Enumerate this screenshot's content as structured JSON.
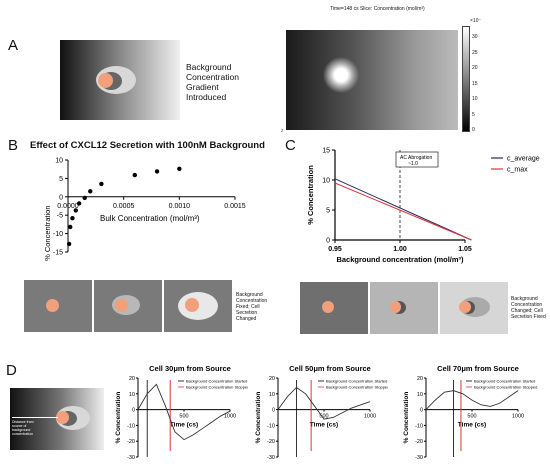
{
  "panel_a": {
    "letter": "A",
    "caption_lines": [
      "Background",
      "Concentration",
      "Gradient",
      "Introduced"
    ],
    "sim_header": "Time=148 cs   Slice: Concentration (mol/m³)",
    "colorbar_exp": "×10⁻",
    "colorbar_ticks": [
      "30",
      "25",
      "20",
      "15",
      "10",
      "5",
      "0"
    ]
  },
  "panel_b": {
    "letter": "B",
    "title": "Effect of CXCL12 Secretion with 100nM Background",
    "xlabel": "Bulk Concentration (mol/m³)",
    "ylabel": "% Concentration",
    "side_caption": [
      "Background",
      "Concentration",
      "Fixed; Cell",
      "Secretion",
      "Changed"
    ]
  },
  "panel_c": {
    "letter": "C",
    "xlabel": "Background concentration (mol/m³)",
    "ylabel": "% Concentration",
    "annotation": [
      "AC Abrogation",
      "~1.0"
    ],
    "side_caption": [
      "Background",
      "Concentration",
      "Changed; Cell",
      "Secretion Fixed"
    ]
  },
  "panel_d": {
    "letter": "D",
    "inset_label": [
      "Distance from",
      "source of",
      "background",
      "concentration"
    ],
    "legend_started": "Background Concentration Started",
    "legend_stopped": "Background Concentration Stopped",
    "ylabel": "% Concentration",
    "xlabel": "Time (cs)",
    "titles": [
      "Cell 30μm from Source",
      "Cell 50μm from Source",
      "Cell 70μm from Source"
    ]
  },
  "colors": {
    "red": "#e0333a",
    "navy": "#2a2a5c",
    "peach": "#f2a07b",
    "grey_bg": "#7d7d7d"
  },
  "chart_data": [
    {
      "type": "scatter",
      "title": "Effect of CXCL12 Secretion with 100nM Background",
      "xlabel": "Bulk Concentration (mol/m³)",
      "ylabel": "% Concentration",
      "xlim": [
        0,
        0.0015
      ],
      "ylim": [
        -15,
        10
      ],
      "xticks": [
        "0.0000",
        "0.0005",
        "0.0010",
        "0.0015"
      ],
      "yticks": [
        "10",
        "5",
        "0",
        "-5",
        "-10",
        "-15"
      ],
      "x": [
        1e-05,
        2e-05,
        4e-05,
        7e-05,
        0.0001,
        0.00015,
        0.0002,
        0.0003,
        0.0006,
        0.0008,
        0.001
      ],
      "y": [
        -12.8,
        -8.2,
        -5.8,
        -3.7,
        -1.8,
        -0.3,
        1.5,
        3.5,
        5.9,
        6.9,
        7.6
      ]
    },
    {
      "type": "line",
      "xlabel": "Background concentration (mol/m³)",
      "ylabel": "% Concentration",
      "xlim": [
        0.95,
        1.05
      ],
      "ylim": [
        0,
        15
      ],
      "xticks": [
        "0.95",
        "1.00",
        "1.05"
      ],
      "yticks": [
        "15",
        "10",
        "5",
        "0"
      ],
      "series": [
        {
          "name": "c_average",
          "color": "#2a2a5c",
          "x": [
            0.95,
            1.055
          ],
          "y": [
            10.2,
            0
          ]
        },
        {
          "name": "c_max",
          "color": "#e0333a",
          "x": [
            0.95,
            1.055
          ],
          "y": [
            9.5,
            0
          ]
        }
      ],
      "vline": 1.0
    },
    {
      "type": "line",
      "title": "Cell 30μm from Source",
      "xlabel": "Time (cs)",
      "ylabel": "% Concentration",
      "xlim": [
        0,
        1000
      ],
      "ylim": [
        -30,
        20
      ],
      "xticks": [
        "500",
        "1000"
      ],
      "yticks": [
        "20",
        "10",
        "0",
        "-10",
        "-20",
        "-30"
      ],
      "series": [
        {
          "name": "",
          "x": [
            0,
            100,
            200,
            300,
            400,
            500,
            600,
            700,
            800,
            900,
            1000
          ],
          "y": [
            0,
            10,
            16,
            2,
            -14,
            -19,
            -16,
            -12,
            -8,
            -4,
            -1
          ]
        }
      ],
      "vlines": [
        100,
        350
      ]
    },
    {
      "type": "line",
      "title": "Cell 50μm from Source",
      "xlabel": "Time (cs)",
      "ylabel": "% Concentration",
      "xlim": [
        0,
        1000
      ],
      "ylim": [
        -30,
        20
      ],
      "xticks": [
        "500",
        "1000"
      ],
      "yticks": [
        "20",
        "10",
        "0",
        "-10",
        "-20",
        "-30"
      ],
      "series": [
        {
          "name": "",
          "x": [
            0,
            100,
            200,
            300,
            400,
            500,
            600,
            700,
            800,
            900,
            1000
          ],
          "y": [
            0,
            8,
            14,
            10,
            2,
            -6,
            -5,
            -2,
            1,
            3,
            5
          ]
        }
      ],
      "vlines": [
        200,
        360
      ]
    },
    {
      "type": "line",
      "title": "Cell 70μm from Source",
      "xlabel": "Time (cs)",
      "ylabel": "% Concentration",
      "xlim": [
        0,
        1000
      ],
      "ylim": [
        -30,
        20
      ],
      "xticks": [
        "500",
        "1000"
      ],
      "yticks": [
        "20",
        "10",
        "0",
        "-10",
        "-20",
        "-30"
      ],
      "series": [
        {
          "name": "",
          "x": [
            0,
            100,
            200,
            300,
            400,
            500,
            600,
            700,
            800,
            900,
            1000
          ],
          "y": [
            0,
            6,
            11,
            12,
            10,
            6,
            3,
            2,
            4,
            8,
            12
          ]
        }
      ],
      "vlines": [
        300,
        380
      ]
    }
  ]
}
